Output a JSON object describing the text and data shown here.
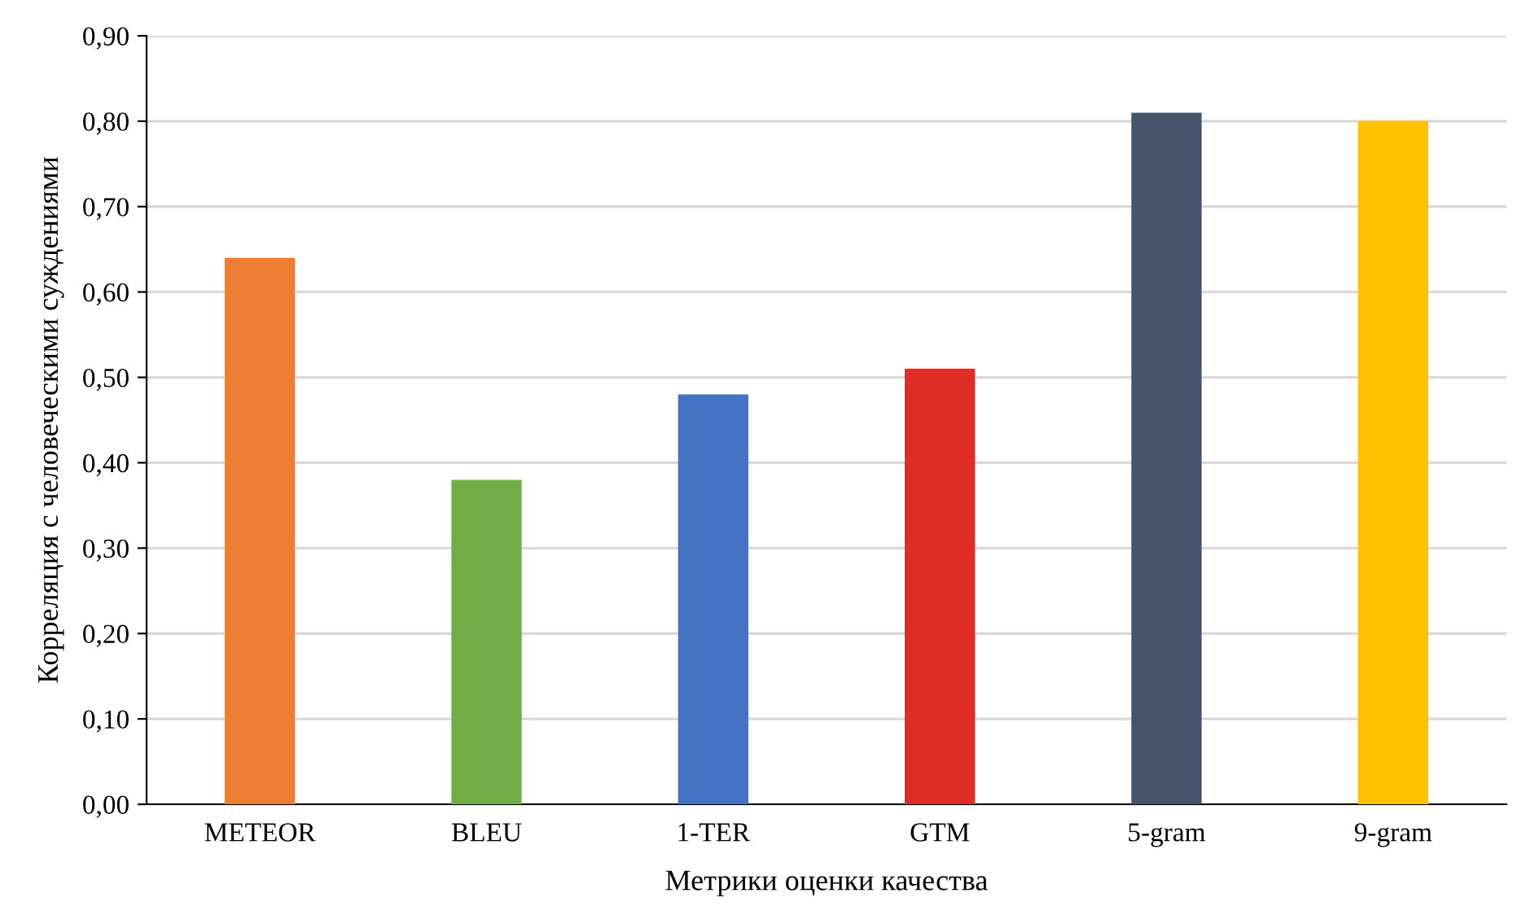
{
  "chart_data": {
    "type": "bar",
    "xlabel": "Метрики оценки качества",
    "ylabel": "Корреляция с человеческими суждениями",
    "categories": [
      "METEOR",
      "BLEU",
      "1-TER",
      "GTM",
      "5-gram",
      "9-gram"
    ],
    "values": [
      0.64,
      0.38,
      0.48,
      0.51,
      0.81,
      0.8
    ],
    "colors": [
      "#ed7d31",
      "#70ad47",
      "#4472c4",
      "#e12d28",
      "#44546a",
      "#ffc000"
    ],
    "ylim": [
      0,
      0.9
    ],
    "yticks": [
      {
        "value": 0,
        "label": "0,00"
      },
      {
        "value": 0.1,
        "label": "0,10"
      },
      {
        "value": 0.2,
        "label": "0,20"
      },
      {
        "value": 0.3,
        "label": "0,30"
      },
      {
        "value": 0.4,
        "label": "0,40"
      },
      {
        "value": 0.5,
        "label": "0,50"
      },
      {
        "value": 0.6,
        "label": "0,60"
      },
      {
        "value": 0.7,
        "label": "0,70"
      },
      {
        "value": 0.8,
        "label": "0,80"
      },
      {
        "value": 0.9,
        "label": "0,90"
      }
    ],
    "grid": "y",
    "legend": false
  }
}
